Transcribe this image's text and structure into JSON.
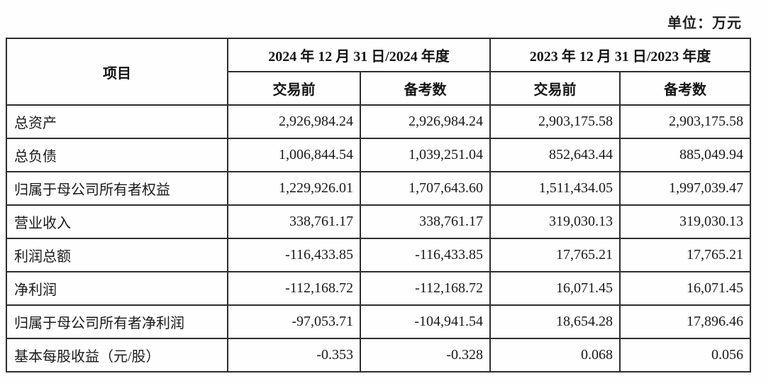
{
  "unit_label": "单位：万元",
  "table": {
    "item_header": "项目",
    "col_groups": [
      {
        "label": "2024 年 12 月 31 日/2024 年度",
        "subcols": [
          "交易前",
          "备考数"
        ]
      },
      {
        "label": "2023 年 12 月 31 日/2023 年度",
        "subcols": [
          "交易前",
          "备考数"
        ]
      }
    ],
    "rows": [
      {
        "label": "总资产",
        "values": [
          "2,926,984.24",
          "2,926,984.24",
          "2,903,175.58",
          "2,903,175.58"
        ]
      },
      {
        "label": "总负债",
        "values": [
          "1,006,844.54",
          "1,039,251.04",
          "852,643.44",
          "885,049.94"
        ]
      },
      {
        "label": "归属于母公司所有者权益",
        "values": [
          "1,229,926.01",
          "1,707,643.60",
          "1,511,434.05",
          "1,997,039.47"
        ]
      },
      {
        "label": "营业收入",
        "values": [
          "338,761.17",
          "338,761.17",
          "319,030.13",
          "319,030.13"
        ]
      },
      {
        "label": "利润总额",
        "values": [
          "-116,433.85",
          "-116,433.85",
          "17,765.21",
          "17,765.21"
        ]
      },
      {
        "label": "净利润",
        "values": [
          "-112,168.72",
          "-112,168.72",
          "16,071.45",
          "16,071.45"
        ]
      },
      {
        "label": "归属于母公司所有者净利润",
        "values": [
          "-97,053.71",
          "-104,941.54",
          "18,654.28",
          "17,896.46"
        ]
      },
      {
        "label": "基本每股收益（元/股）",
        "values": [
          "-0.353",
          "-0.328",
          "0.068",
          "0.056"
        ]
      }
    ]
  },
  "colors": {
    "border": "#2e2e2e",
    "text": "#1a1a1a",
    "background": "#fefefe"
  }
}
